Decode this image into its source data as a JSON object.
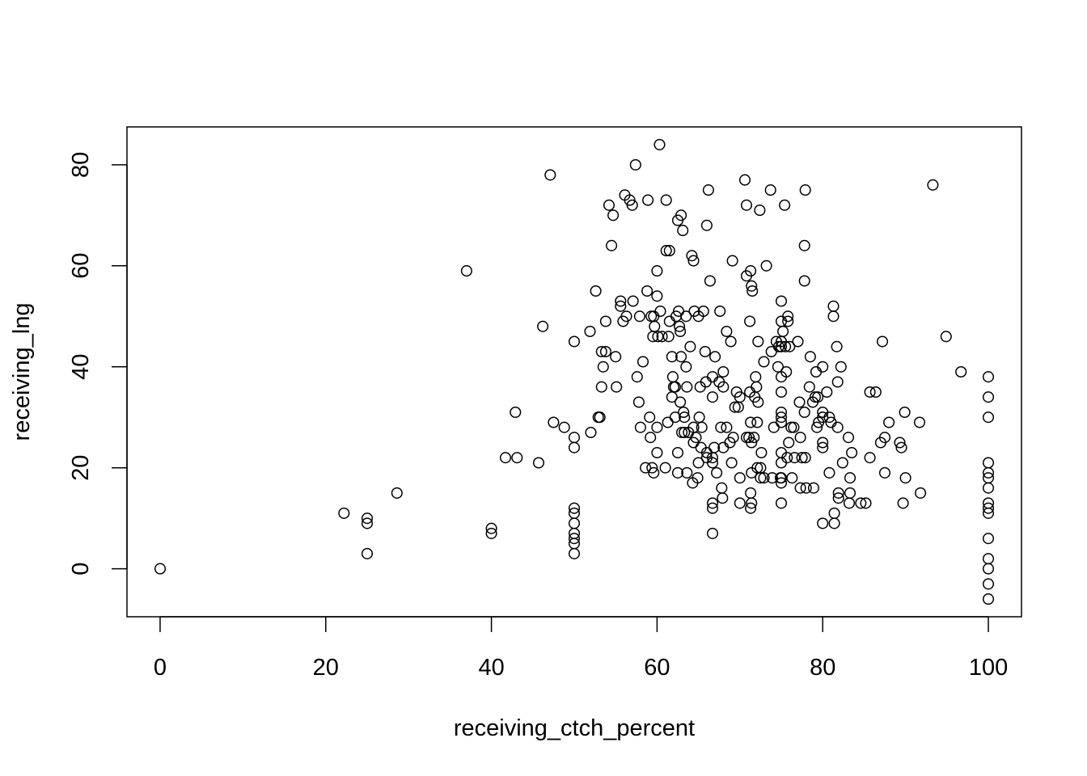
{
  "chart_data": {
    "type": "scatter",
    "xlabel": "receiving_ctch_percent",
    "ylabel": "receiving_lng",
    "xlim": [
      -4,
      104
    ],
    "ylim": [
      -9.5,
      87.5
    ],
    "x_ticks": [
      0,
      20,
      40,
      60,
      80,
      100
    ],
    "y_ticks": [
      0,
      20,
      40,
      60,
      80
    ],
    "grid": false,
    "legend": "none",
    "marker": "open-circle",
    "colors": {
      "stroke": "#000000",
      "background": "#ffffff"
    },
    "points": [
      [
        0,
        0
      ],
      [
        22.2,
        11
      ],
      [
        25,
        10
      ],
      [
        25,
        9
      ],
      [
        25,
        3
      ],
      [
        28.6,
        15
      ],
      [
        37,
        59
      ],
      [
        40,
        8
      ],
      [
        40,
        7
      ],
      [
        41.7,
        22
      ],
      [
        42.9,
        31
      ],
      [
        43.1,
        22
      ],
      [
        45.7,
        21
      ],
      [
        46.2,
        48
      ],
      [
        47.1,
        78
      ],
      [
        47.5,
        29
      ],
      [
        48.8,
        28
      ],
      [
        50,
        45
      ],
      [
        50,
        26
      ],
      [
        50,
        24
      ],
      [
        50,
        12
      ],
      [
        50,
        11
      ],
      [
        50,
        9
      ],
      [
        50,
        7
      ],
      [
        50,
        6
      ],
      [
        50,
        5
      ],
      [
        50,
        3
      ],
      [
        51.9,
        47
      ],
      [
        52,
        27
      ],
      [
        52.6,
        55
      ],
      [
        52.9,
        30
      ],
      [
        53.1,
        30
      ],
      [
        53.3,
        36
      ],
      [
        53.3,
        43
      ],
      [
        53.5,
        40
      ],
      [
        53.8,
        43
      ],
      [
        53.8,
        49
      ],
      [
        54.2,
        72
      ],
      [
        54.5,
        64
      ],
      [
        54.7,
        70
      ],
      [
        55,
        42
      ],
      [
        55.1,
        36
      ],
      [
        55.6,
        53
      ],
      [
        55.6,
        52
      ],
      [
        55.9,
        49
      ],
      [
        56.1,
        74
      ],
      [
        56.3,
        50
      ],
      [
        56.7,
        73
      ],
      [
        57,
        72
      ],
      [
        57.1,
        53
      ],
      [
        57.4,
        80
      ],
      [
        57.6,
        38
      ],
      [
        57.8,
        33
      ],
      [
        57.9,
        50
      ],
      [
        58,
        28
      ],
      [
        58.3,
        41
      ],
      [
        58.6,
        20
      ],
      [
        58.8,
        55
      ],
      [
        58.9,
        73
      ],
      [
        59.1,
        30
      ],
      [
        59.2,
        26
      ],
      [
        59.3,
        50
      ],
      [
        59.4,
        20
      ],
      [
        59.5,
        46
      ],
      [
        59.6,
        19
      ],
      [
        59.6,
        50
      ],
      [
        59.7,
        48
      ],
      [
        60,
        54
      ],
      [
        60,
        59
      ],
      [
        60,
        23
      ],
      [
        60,
        28
      ],
      [
        60.1,
        46
      ],
      [
        60.3,
        84
      ],
      [
        60.4,
        51
      ],
      [
        60.6,
        46
      ],
      [
        61,
        20
      ],
      [
        61.1,
        73
      ],
      [
        61.1,
        63
      ],
      [
        61.3,
        29
      ],
      [
        61.4,
        46
      ],
      [
        61.5,
        49
      ],
      [
        61.5,
        63
      ],
      [
        61.8,
        34
      ],
      [
        61.8,
        42
      ],
      [
        61.9,
        38
      ],
      [
        62,
        36
      ],
      [
        62.2,
        30
      ],
      [
        62.2,
        36
      ],
      [
        62.3,
        50
      ],
      [
        62.5,
        69
      ],
      [
        62.5,
        23
      ],
      [
        62.5,
        19
      ],
      [
        62.6,
        51
      ],
      [
        62.7,
        48
      ],
      [
        62.8,
        47
      ],
      [
        62.8,
        33
      ],
      [
        62.9,
        70
      ],
      [
        62.9,
        42
      ],
      [
        63,
        27
      ],
      [
        63.1,
        67
      ],
      [
        63.2,
        31
      ],
      [
        63.3,
        27
      ],
      [
        63.3,
        30
      ],
      [
        63.5,
        50
      ],
      [
        63.5,
        40
      ],
      [
        63.6,
        36
      ],
      [
        63.6,
        19
      ],
      [
        63.8,
        27
      ],
      [
        64,
        44
      ],
      [
        64.2,
        62
      ],
      [
        64.3,
        17
      ],
      [
        64.4,
        25
      ],
      [
        64.4,
        28
      ],
      [
        64.4,
        61
      ],
      [
        64.5,
        51
      ],
      [
        64.7,
        26
      ],
      [
        64.9,
        18
      ],
      [
        65,
        21
      ],
      [
        65,
        50
      ],
      [
        65.1,
        30
      ],
      [
        65.2,
        36
      ],
      [
        65.3,
        24
      ],
      [
        65.4,
        28
      ],
      [
        65.6,
        51
      ],
      [
        65.8,
        43
      ],
      [
        65.9,
        37
      ],
      [
        66,
        68
      ],
      [
        66,
        23
      ],
      [
        66,
        22
      ],
      [
        66.2,
        75
      ],
      [
        66.4,
        57
      ],
      [
        66.7,
        38
      ],
      [
        66.7,
        34
      ],
      [
        66.7,
        22
      ],
      [
        66.7,
        13
      ],
      [
        66.7,
        12
      ],
      [
        66.7,
        7
      ],
      [
        66.7,
        21
      ],
      [
        66.9,
        24
      ],
      [
        67,
        42
      ],
      [
        67.2,
        19
      ],
      [
        67.5,
        37
      ],
      [
        67.6,
        51
      ],
      [
        67.7,
        28
      ],
      [
        67.8,
        16
      ],
      [
        67.9,
        14
      ],
      [
        68,
        36
      ],
      [
        68,
        39
      ],
      [
        68,
        24
      ],
      [
        68.4,
        47
      ],
      [
        68.4,
        28
      ],
      [
        68.8,
        25
      ],
      [
        68.9,
        45
      ],
      [
        69,
        21
      ],
      [
        69.1,
        61
      ],
      [
        69.2,
        26
      ],
      [
        69.4,
        32
      ],
      [
        69.6,
        35
      ],
      [
        69.8,
        32
      ],
      [
        70,
        18
      ],
      [
        70,
        34
      ],
      [
        70,
        13
      ],
      [
        70.6,
        77
      ],
      [
        70.8,
        26
      ],
      [
        70.8,
        58
      ],
      [
        70.8,
        72
      ],
      [
        71.1,
        26
      ],
      [
        71.2,
        49
      ],
      [
        71.2,
        35
      ],
      [
        71.3,
        29
      ],
      [
        71.3,
        59
      ],
      [
        71.3,
        15
      ],
      [
        71.3,
        12
      ],
      [
        71.4,
        13
      ],
      [
        71.4,
        25
      ],
      [
        71.4,
        19
      ],
      [
        71.4,
        56
      ],
      [
        71.5,
        55
      ],
      [
        71.7,
        26
      ],
      [
        71.8,
        34
      ],
      [
        71.9,
        38
      ],
      [
        72,
        36
      ],
      [
        72.1,
        29
      ],
      [
        72.1,
        20
      ],
      [
        72.2,
        45
      ],
      [
        72.2,
        33
      ],
      [
        72.4,
        71
      ],
      [
        72.5,
        20
      ],
      [
        72.5,
        18
      ],
      [
        72.6,
        23
      ],
      [
        72.9,
        18
      ],
      [
        72.9,
        41
      ],
      [
        73.2,
        60
      ],
      [
        73.7,
        75
      ],
      [
        73.8,
        43
      ],
      [
        73.9,
        18
      ],
      [
        74.1,
        28
      ],
      [
        74.4,
        45
      ],
      [
        74.6,
        40
      ],
      [
        74.7,
        44
      ],
      [
        74.9,
        18
      ],
      [
        75,
        53
      ],
      [
        75,
        49
      ],
      [
        75,
        45
      ],
      [
        75,
        44
      ],
      [
        75,
        38
      ],
      [
        75,
        35
      ],
      [
        75,
        31
      ],
      [
        75,
        30
      ],
      [
        75,
        29
      ],
      [
        75,
        23
      ],
      [
        75,
        21
      ],
      [
        75,
        18
      ],
      [
        75,
        17
      ],
      [
        75,
        13
      ],
      [
        75.2,
        47
      ],
      [
        75.4,
        72
      ],
      [
        75.5,
        44
      ],
      [
        75.6,
        39
      ],
      [
        75.7,
        22
      ],
      [
        75.8,
        50
      ],
      [
        75.8,
        49
      ],
      [
        75.9,
        25
      ],
      [
        76,
        44
      ],
      [
        76.2,
        28
      ],
      [
        76.3,
        18
      ],
      [
        76.5,
        28
      ],
      [
        76.6,
        22
      ],
      [
        77,
        45
      ],
      [
        77.2,
        33
      ],
      [
        77.3,
        16
      ],
      [
        77.3,
        26
      ],
      [
        77.5,
        22
      ],
      [
        77.8,
        31
      ],
      [
        77.8,
        64
      ],
      [
        77.8,
        57
      ],
      [
        77.9,
        75
      ],
      [
        77.9,
        22
      ],
      [
        78,
        16
      ],
      [
        78.4,
        36
      ],
      [
        78.5,
        42
      ],
      [
        78.8,
        33
      ],
      [
        78.9,
        16
      ],
      [
        79.1,
        34
      ],
      [
        79.2,
        39
      ],
      [
        79.3,
        28
      ],
      [
        79.4,
        34
      ],
      [
        79.5,
        29
      ],
      [
        80,
        40
      ],
      [
        80,
        31
      ],
      [
        80,
        30
      ],
      [
        80,
        24
      ],
      [
        80,
        25
      ],
      [
        80,
        9
      ],
      [
        80.5,
        35
      ],
      [
        80.8,
        19
      ],
      [
        80.8,
        30
      ],
      [
        81,
        29
      ],
      [
        81.3,
        52
      ],
      [
        81.3,
        50
      ],
      [
        81.4,
        9
      ],
      [
        81.4,
        11
      ],
      [
        81.7,
        44
      ],
      [
        81.8,
        37
      ],
      [
        81.8,
        28
      ],
      [
        81.9,
        15
      ],
      [
        81.9,
        14
      ],
      [
        82.2,
        40
      ],
      [
        82.4,
        21
      ],
      [
        83.1,
        26
      ],
      [
        83.2,
        13
      ],
      [
        83.3,
        18
      ],
      [
        83.3,
        15
      ],
      [
        83.5,
        23
      ],
      [
        84.6,
        13
      ],
      [
        85.2,
        13
      ],
      [
        85.7,
        35
      ],
      [
        85.7,
        22
      ],
      [
        86.4,
        35
      ],
      [
        87,
        25
      ],
      [
        87.2,
        45
      ],
      [
        87.5,
        26
      ],
      [
        87.5,
        19
      ],
      [
        88,
        29
      ],
      [
        89.3,
        25
      ],
      [
        89.5,
        24
      ],
      [
        89.7,
        13
      ],
      [
        89.9,
        31
      ],
      [
        90,
        18
      ],
      [
        91.7,
        29
      ],
      [
        91.8,
        15
      ],
      [
        93.3,
        76
      ],
      [
        94.9,
        46
      ],
      [
        96.7,
        39
      ],
      [
        100,
        38
      ],
      [
        100,
        34
      ],
      [
        100,
        30
      ],
      [
        100,
        21
      ],
      [
        100,
        19
      ],
      [
        100,
        18
      ],
      [
        100,
        16
      ],
      [
        100,
        13
      ],
      [
        100,
        12
      ],
      [
        100,
        11
      ],
      [
        100,
        6
      ],
      [
        100,
        2
      ],
      [
        100,
        0
      ],
      [
        100,
        -3
      ],
      [
        100,
        -6
      ]
    ]
  }
}
